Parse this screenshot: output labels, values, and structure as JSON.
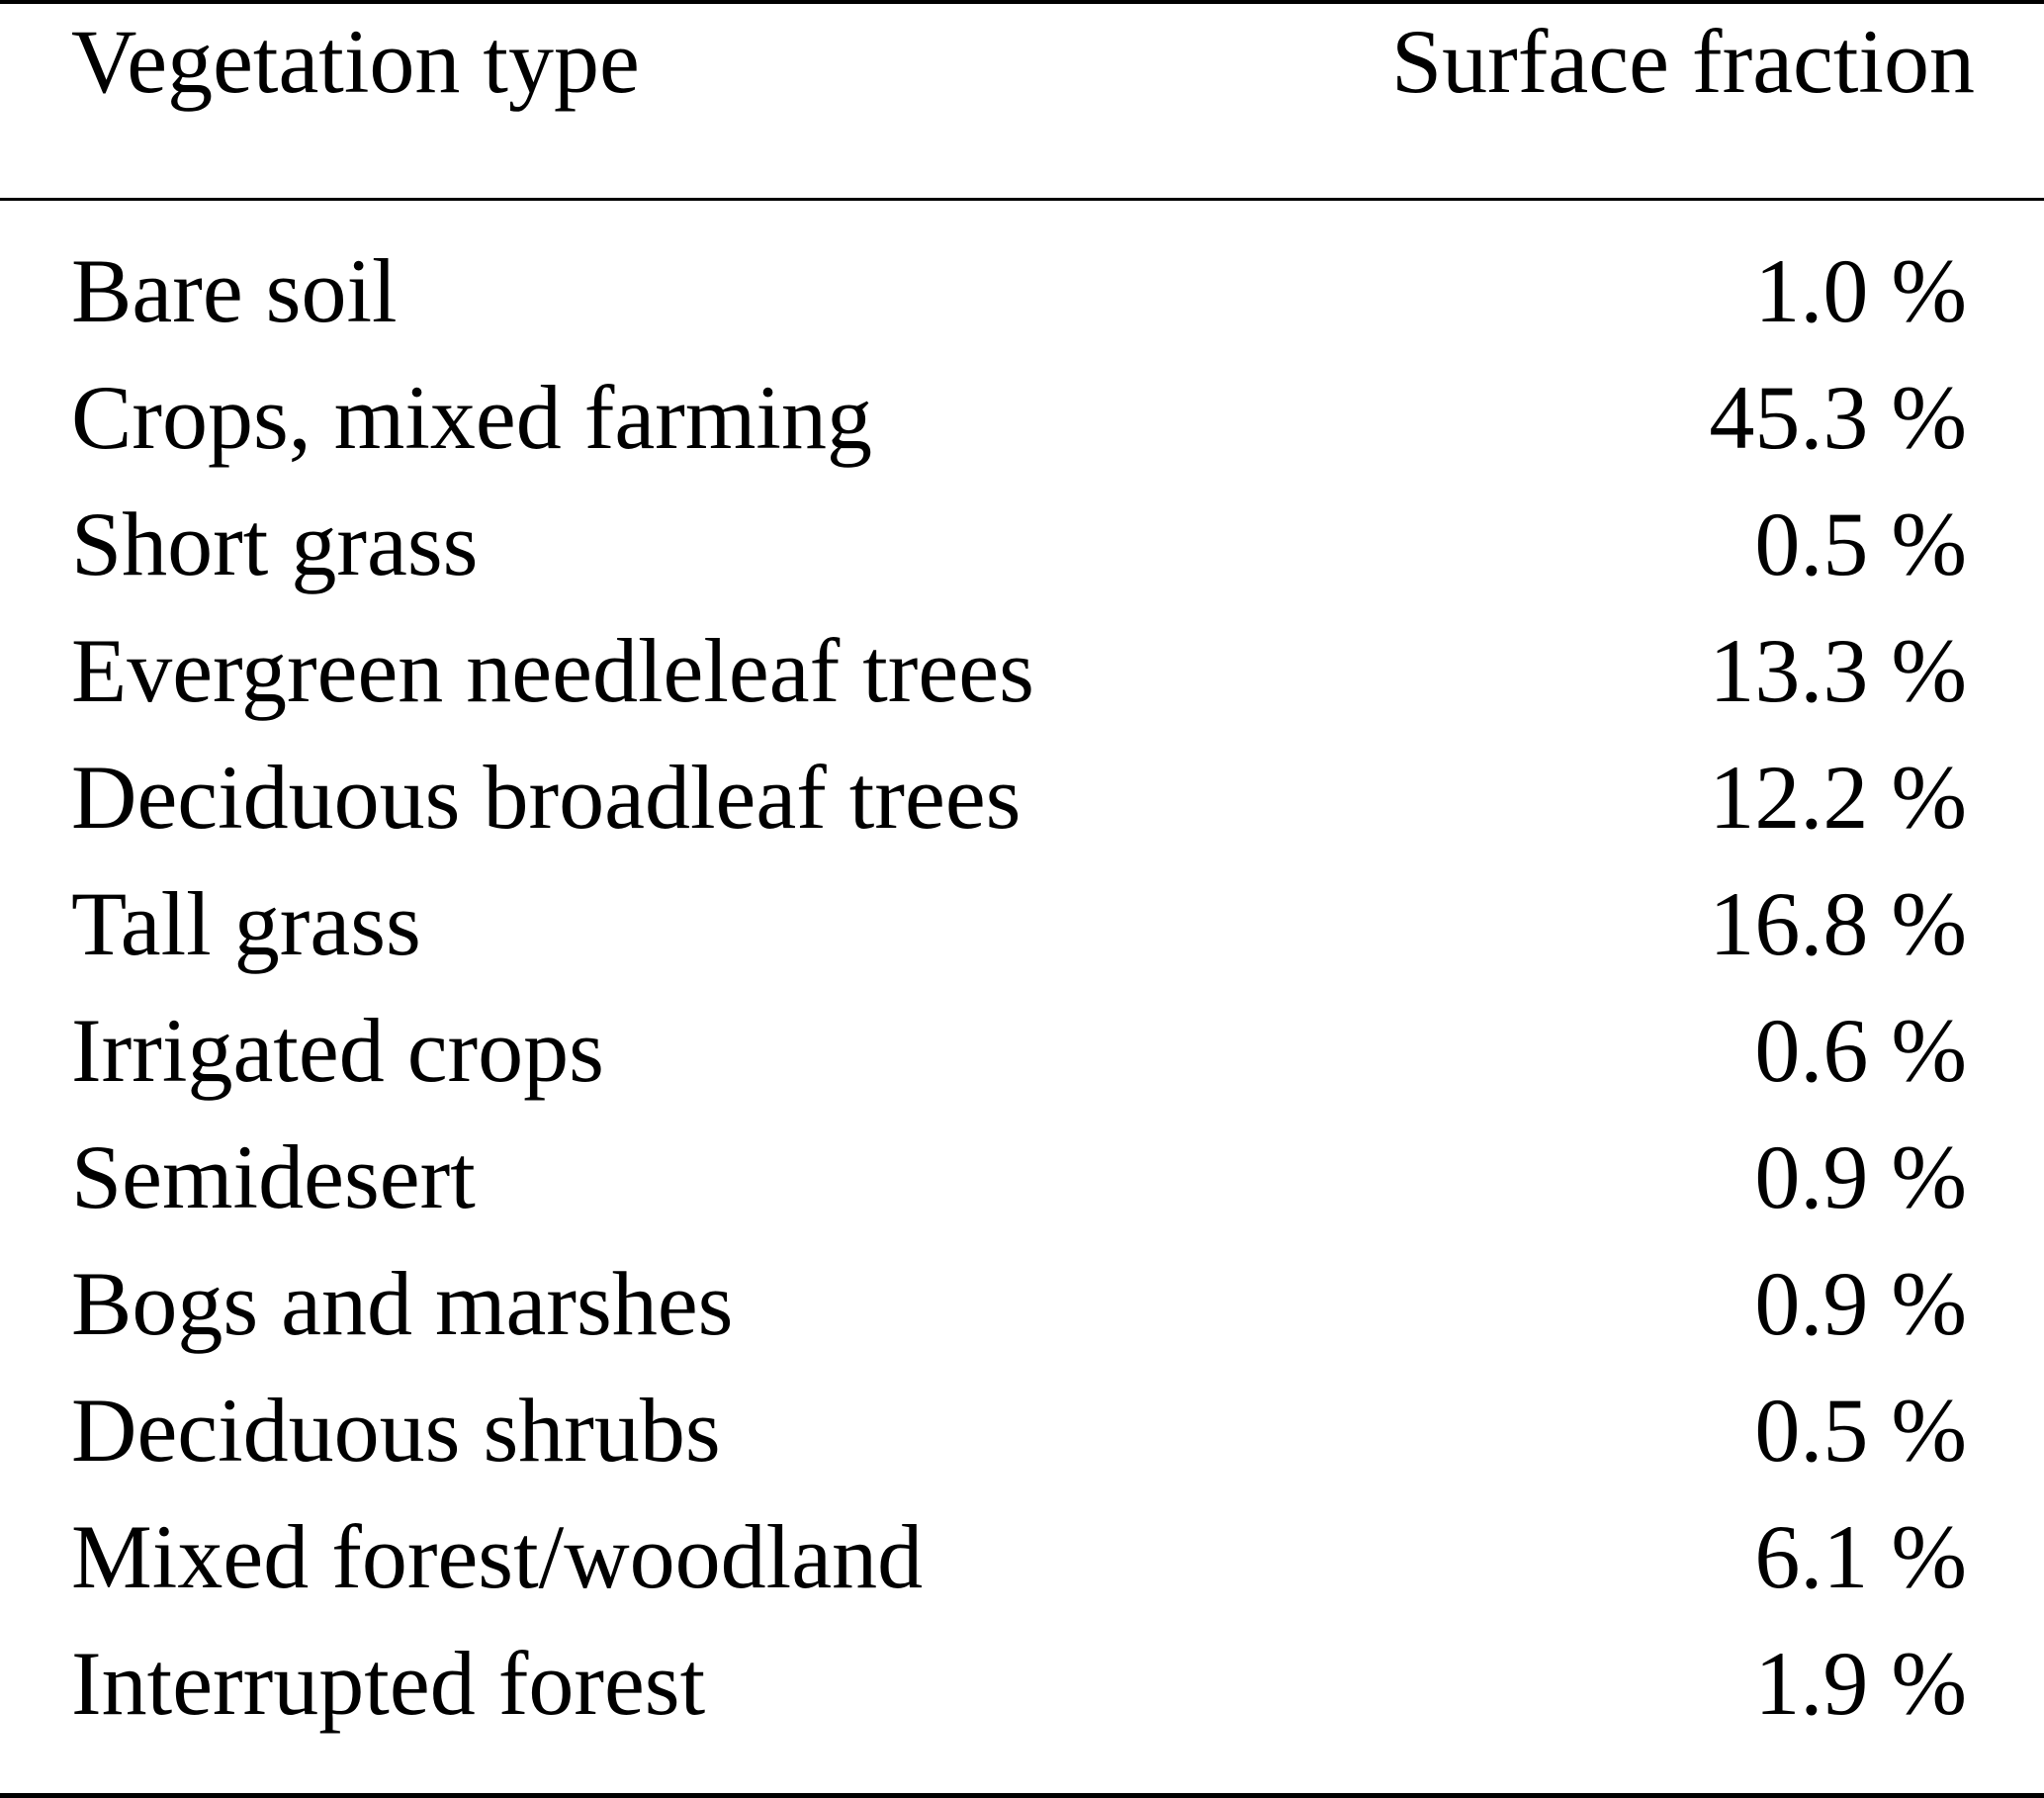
{
  "table": {
    "headers": {
      "type": "Vegetation type",
      "fraction": "Surface fraction"
    },
    "rows": [
      {
        "type": "Bare soil",
        "fraction": "1.0 %"
      },
      {
        "type": "Crops, mixed farming",
        "fraction": "45.3 %"
      },
      {
        "type": "Short grass",
        "fraction": "0.5 %"
      },
      {
        "type": "Evergreen needleleaf trees",
        "fraction": "13.3 %"
      },
      {
        "type": "Deciduous broadleaf trees",
        "fraction": "12.2 %"
      },
      {
        "type": "Tall grass",
        "fraction": "16.8 %"
      },
      {
        "type": "Irrigated crops",
        "fraction": "0.6 %"
      },
      {
        "type": "Semidesert",
        "fraction": "0.9 %"
      },
      {
        "type": "Bogs and marshes",
        "fraction": "0.9 %"
      },
      {
        "type": "Deciduous shrubs",
        "fraction": "0.5 %"
      },
      {
        "type": "Mixed forest/woodland",
        "fraction": "6.1 %"
      },
      {
        "type": "Interrupted forest",
        "fraction": "1.9 %"
      }
    ]
  }
}
